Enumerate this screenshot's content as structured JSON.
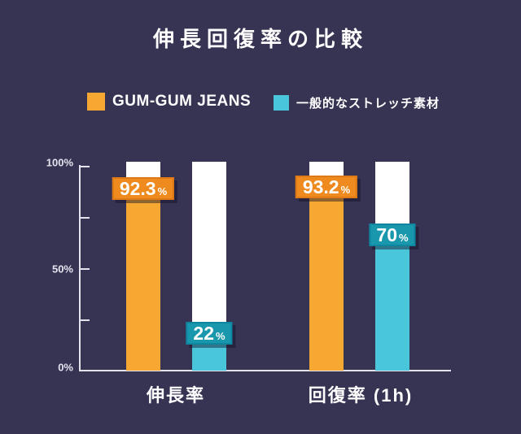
{
  "chart_data": {
    "type": "bar",
    "title": "伸長回復率の比較",
    "categories": [
      "伸長率",
      "回復率 (1h)"
    ],
    "series": [
      {
        "name": "GUM-GUM JEANS",
        "bar_color": "#F6A833",
        "badge_color": "#EF8A1E",
        "badge_border": "#DD7916",
        "values": [
          92.3,
          93.2
        ],
        "value_labels": [
          "92.3",
          "93.2"
        ]
      },
      {
        "name": "一般的なストレッチ素材",
        "bar_color": "#4AC6DB",
        "badge_color": "#1897AD",
        "badge_border": "#0E86A0",
        "values": [
          22,
          70
        ],
        "value_labels": [
          "22",
          "70"
        ]
      }
    ],
    "unit": "%",
    "ylim": [
      0,
      100
    ],
    "ytick_labels": [
      "100%",
      "50%",
      "0%"
    ],
    "grid": false,
    "legend_position": "top",
    "track_color": "#FFFFFF",
    "background_color": "#373453"
  }
}
